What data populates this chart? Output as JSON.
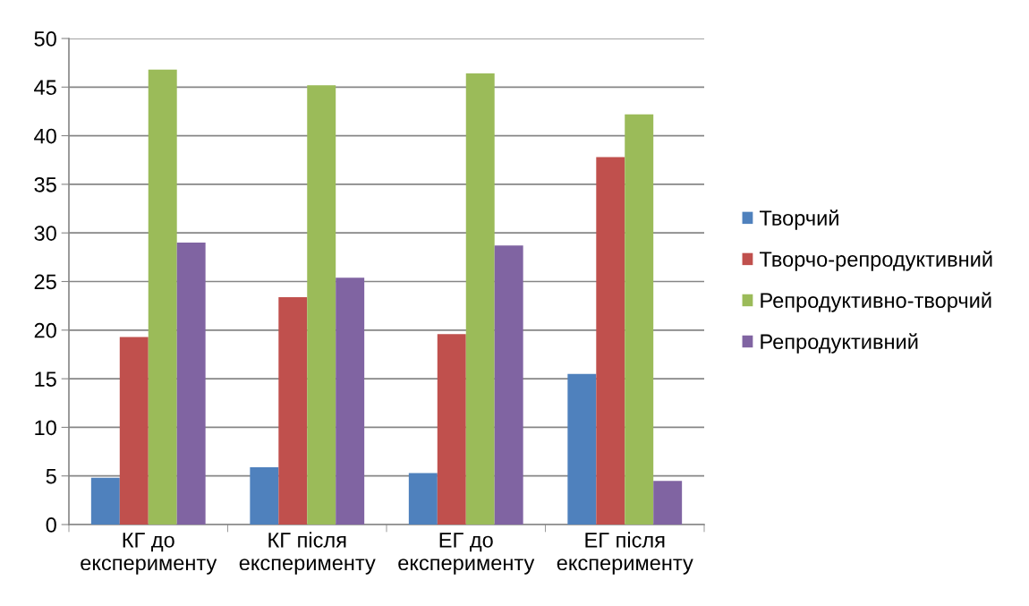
{
  "chart_data": {
    "type": "bar",
    "categories": [
      "КГ до\nексперименту",
      "КГ після\nексперименту",
      "ЕГ до\nексперименту",
      "ЕГ після\nексперименту"
    ],
    "series": [
      {
        "name": "Творчий",
        "color": "#4f81bd",
        "values": [
          4.8,
          5.9,
          5.3,
          15.5
        ]
      },
      {
        "name": "Творчо-репродуктивний",
        "color": "#c0504d",
        "values": [
          19.3,
          23.4,
          19.6,
          37.8
        ]
      },
      {
        "name": "Репродуктивно-творчий",
        "color": "#9bbb59",
        "values": [
          46.8,
          45.2,
          46.4,
          42.2
        ]
      },
      {
        "name": "Репродуктивний",
        "color": "#8064a2",
        "values": [
          29.0,
          25.4,
          28.7,
          4.5
        ]
      }
    ],
    "ylim": [
      0,
      50
    ],
    "yticks": [
      0,
      5,
      10,
      15,
      20,
      25,
      30,
      35,
      40,
      45,
      50
    ],
    "grid": "y",
    "legend": "right"
  }
}
